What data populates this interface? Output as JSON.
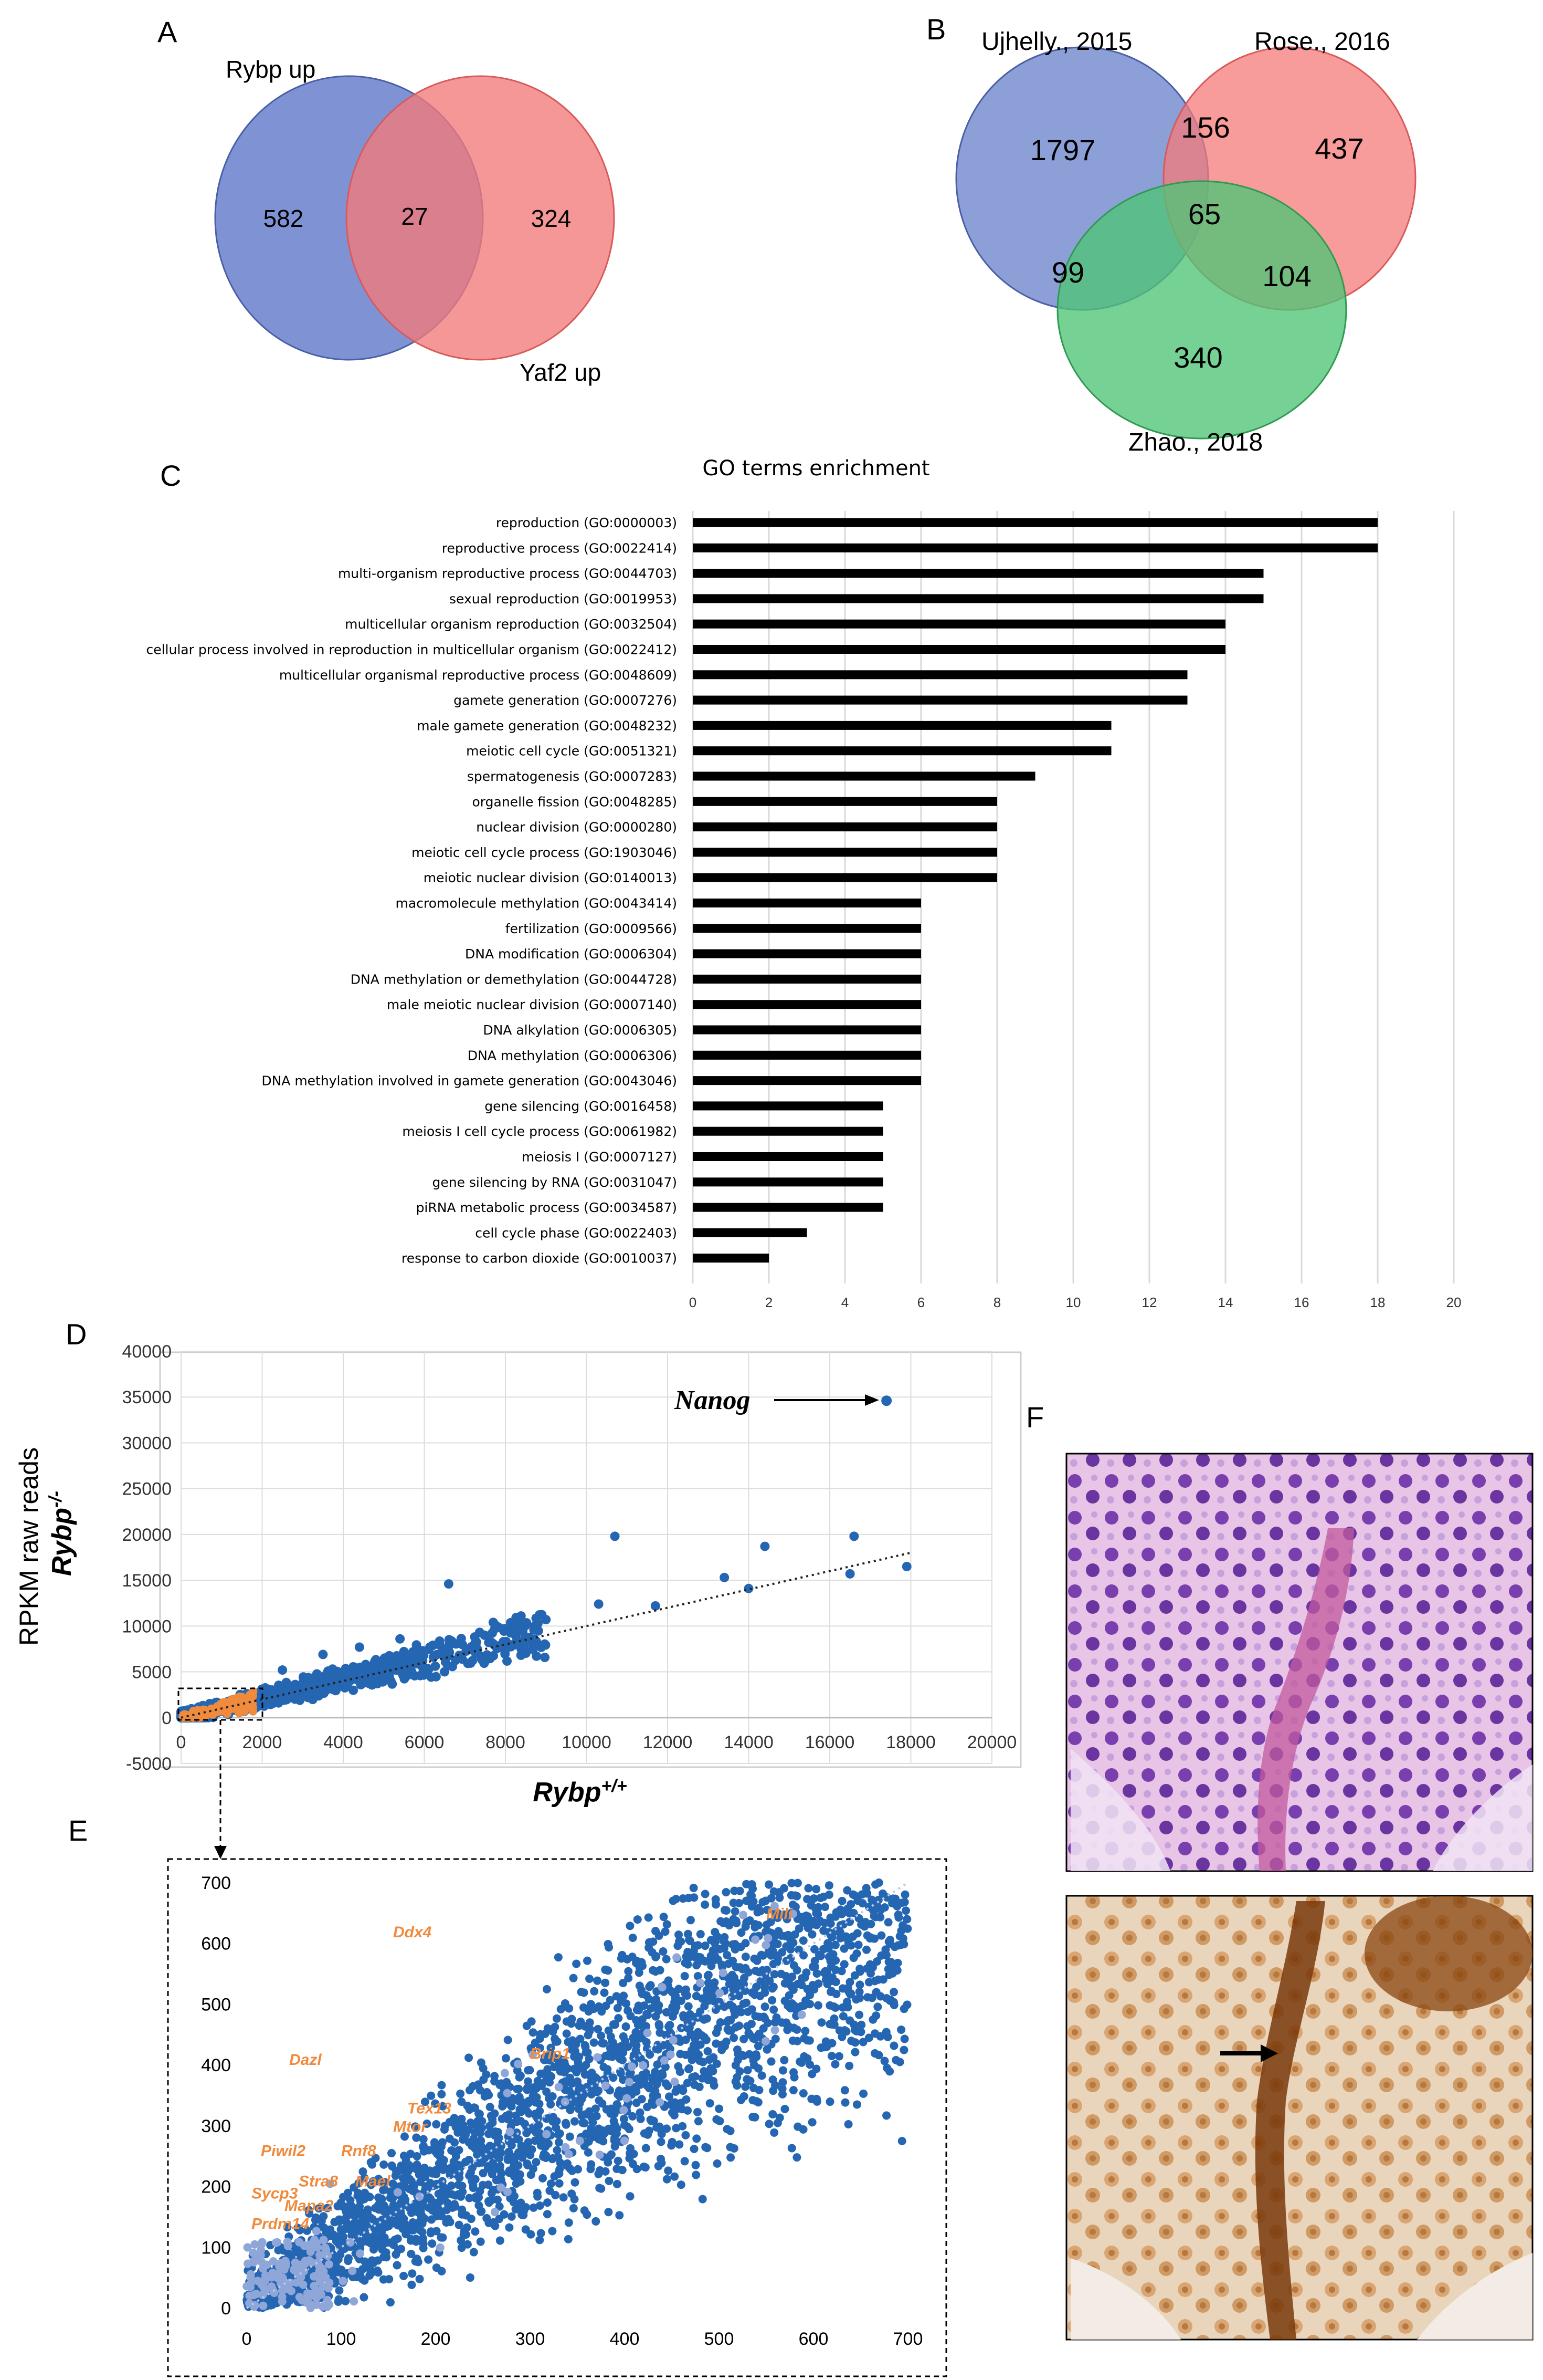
{
  "panels": {
    "a": "A",
    "b": "B",
    "c": "C",
    "d": "D",
    "e": "E",
    "f": "F"
  },
  "venn_a": {
    "left_label": "Rybp up",
    "right_label": "Yaf2 up",
    "left_only": "582",
    "overlap": "27",
    "right_only": "324",
    "colors": {
      "left": "#5b74c8",
      "right": "#f47a7a",
      "overlap": "#b7425a"
    }
  },
  "venn_b": {
    "label_1": "Ujhelly., 2015",
    "label_2": "Rose., 2016",
    "label_3": "Zhao., 2018",
    "only_1": "1797",
    "only_2": "437",
    "only_3": "340",
    "v12": "156",
    "v13": "99",
    "v23": "104",
    "v123": "65",
    "colors": {
      "c1": "#6b84cc",
      "c2": "#f47a7a",
      "c3": "#4fc476"
    }
  },
  "chart_data": [
    {
      "type": "bar",
      "orientation": "horizontal",
      "title": "GO terms enrichment",
      "categories": [
        "reproduction (GO:0000003)",
        "reproductive process (GO:0022414)",
        "multi-organism reproductive process (GO:0044703)",
        "sexual reproduction (GO:0019953)",
        "multicellular organism reproduction (GO:0032504)",
        "cellular process involved in reproduction in multicellular organism (GO:0022412)",
        "multicellular organismal reproductive process (GO:0048609)",
        "gamete generation (GO:0007276)",
        "male gamete generation (GO:0048232)",
        "meiotic cell cycle (GO:0051321)",
        "spermatogenesis (GO:0007283)",
        "organelle fission (GO:0048285)",
        "nuclear division (GO:0000280)",
        "meiotic cell cycle process (GO:1903046)",
        "meiotic nuclear division (GO:0140013)",
        "macromolecule methylation (GO:0043414)",
        "fertilization (GO:0009566)",
        "DNA modification (GO:0006304)",
        "DNA methylation or demethylation (GO:0044728)",
        "male meiotic nuclear division (GO:0007140)",
        "DNA alkylation (GO:0006305)",
        "DNA methylation (GO:0006306)",
        "DNA methylation involved in gamete generation (GO:0043046)",
        "gene silencing (GO:0016458)",
        "meiosis I cell cycle process (GO:0061982)",
        "meiosis I (GO:0007127)",
        "gene silencing by RNA (GO:0031047)",
        "piRNA metabolic process (GO:0034587)",
        "cell cycle phase (GO:0022403)",
        "response to carbon dioxide (GO:0010037)"
      ],
      "values": [
        18,
        18,
        15,
        15,
        14,
        14,
        13,
        13,
        11,
        11,
        9,
        8,
        8,
        8,
        8,
        6,
        6,
        6,
        6,
        6,
        6,
        6,
        6,
        5,
        5,
        5,
        5,
        5,
        3,
        2
      ],
      "xlim": [
        0,
        20
      ],
      "xticks": [
        "0",
        "2",
        "4",
        "6",
        "8",
        "10",
        "12",
        "14",
        "16",
        "18",
        "20"
      ],
      "grid": true
    },
    {
      "type": "scatter",
      "xlabel": "Rybp+/+",
      "ylabel_top": "RPKM raw reads",
      "ylabel": "Rybp-/-",
      "xlim": [
        0,
        20000
      ],
      "ylim": [
        -5000,
        40000
      ],
      "xticks": [
        "0",
        "2000",
        "4000",
        "6000",
        "8000",
        "10000",
        "12000",
        "14000",
        "16000",
        "18000",
        "20000"
      ],
      "yticks": [
        "40000",
        "35000",
        "30000",
        "25000",
        "20000",
        "15000",
        "10000",
        "5000",
        "0",
        "-5000"
      ],
      "annotation": "Nanog",
      "highlight_point": [
        17400,
        34600
      ],
      "outlier_points": [
        [
          10700,
          19800
        ],
        [
          14400,
          18700
        ],
        [
          16600,
          19800
        ],
        [
          17900,
          16500
        ],
        [
          16500,
          15700
        ],
        [
          13400,
          15300
        ],
        [
          6600,
          14600
        ],
        [
          14000,
          14100
        ],
        [
          10300,
          12400
        ],
        [
          11700,
          12200
        ],
        [
          9000,
          10700
        ],
        [
          7700,
          10400
        ],
        [
          8300,
          9700
        ],
        [
          5400,
          8600
        ],
        [
          4400,
          7700
        ],
        [
          3500,
          6900
        ],
        [
          2500,
          5200
        ]
      ],
      "trend": [
        [
          0,
          0
        ],
        [
          18000,
          18000
        ]
      ]
    },
    {
      "type": "scatter",
      "xlim": [
        0,
        700
      ],
      "ylim": [
        0,
        700
      ],
      "xticks": [
        "0",
        "100",
        "200",
        "300",
        "400",
        "500",
        "600",
        "700"
      ],
      "yticks": [
        "700",
        "600",
        "500",
        "400",
        "300",
        "200",
        "100",
        "0"
      ],
      "gene_labels": [
        {
          "name": "Ddx4",
          "x": 155,
          "y": 610
        },
        {
          "name": "Mili",
          "x": 550,
          "y": 640
        },
        {
          "name": "Dazl",
          "x": 45,
          "y": 400
        },
        {
          "name": "Brip1",
          "x": 300,
          "y": 410
        },
        {
          "name": "Tex13",
          "x": 170,
          "y": 320
        },
        {
          "name": "Mtor",
          "x": 155,
          "y": 290
        },
        {
          "name": "Piwil2",
          "x": 15,
          "y": 250
        },
        {
          "name": "Rnf8",
          "x": 100,
          "y": 250
        },
        {
          "name": "Stra8",
          "x": 55,
          "y": 200
        },
        {
          "name": "Mael",
          "x": 115,
          "y": 200
        },
        {
          "name": "Sycp3",
          "x": 5,
          "y": 180
        },
        {
          "name": "Mapa2",
          "x": 40,
          "y": 160
        },
        {
          "name": "Prdm14",
          "x": 5,
          "y": 130
        }
      ]
    }
  ],
  "micrographs": {
    "he_colors": {
      "bg": "#e8c4e6",
      "cell": "#7a3fae",
      "nucleus": "#4a2a8a",
      "vessel": "#c25a9e"
    },
    "ihc_colors": {
      "bg": "#e9d4bc",
      "cyto": "#d9a673",
      "nucleus": "#8a4510",
      "strong": "#6e3308"
    }
  },
  "colors": {
    "blue": "#2566b3",
    "lightblue": "#8fa6d8",
    "orange": "#f08a3c",
    "bar": "#000000",
    "grid": "#d9d9d9"
  }
}
